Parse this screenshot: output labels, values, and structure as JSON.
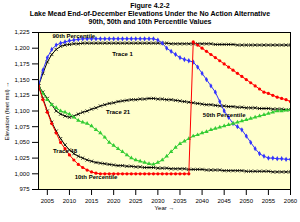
{
  "chart_data": {
    "type": "line",
    "title": "Figure 4.2-2",
    "subtitle": [
      "Lake Mead End-of-December Elevations Under the No Action Alternative",
      "90th, 50th and 10th Percentile Values"
    ],
    "x_label": "Year",
    "y_label": "Elevation (feet msl)",
    "x": [
      2003,
      2004,
      2005,
      2006,
      2007,
      2008,
      2009,
      2010,
      2011,
      2012,
      2013,
      2014,
      2015,
      2016,
      2017,
      2018,
      2019,
      2020,
      2021,
      2022,
      2023,
      2024,
      2025,
      2026,
      2027,
      2028,
      2029,
      2030,
      2031,
      2032,
      2033,
      2034,
      2035,
      2036,
      2037,
      2038,
      2039,
      2040,
      2041,
      2042,
      2043,
      2044,
      2045,
      2046,
      2047,
      2048,
      2049,
      2050,
      2051,
      2052,
      2053,
      2054,
      2055,
      2056,
      2057,
      2058,
      2059,
      2060
    ],
    "xlim": [
      2003,
      2060
    ],
    "xticks": [
      2005,
      2010,
      2015,
      2020,
      2025,
      2030,
      2035,
      2040,
      2045,
      2050,
      2055,
      2060
    ],
    "ylim": [
      975,
      1225
    ],
    "yticks": [
      {
        "value": 975,
        "label": "975"
      },
      {
        "value": 1000,
        "label": "1,000"
      },
      {
        "value": 1025,
        "label": "1,025"
      },
      {
        "value": 1050,
        "label": "1,050"
      },
      {
        "value": 1075,
        "label": "1,075"
      },
      {
        "value": 1100,
        "label": "1,100"
      },
      {
        "value": 1125,
        "label": "1,125"
      },
      {
        "value": 1150,
        "label": "1,150"
      },
      {
        "value": 1175,
        "label": "1,175"
      },
      {
        "value": 1200,
        "label": "1,200"
      },
      {
        "value": 1225,
        "label": "1,225"
      }
    ],
    "grid": false,
    "series": [
      {
        "name": "90th Percentile",
        "color": "#000000",
        "marker": "times",
        "line_style": "solid",
        "values": [
          1140,
          1160,
          1178,
          1190,
          1198,
          1203,
          1205,
          1206,
          1207,
          1207,
          1208,
          1208,
          1208,
          1208,
          1208,
          1208,
          1208,
          1208,
          1208,
          1208,
          1208,
          1208,
          1208,
          1208,
          1208,
          1208,
          1208,
          1208,
          1208,
          1208,
          1207,
          1207,
          1207,
          1207,
          1207,
          1207,
          1207,
          1207,
          1207,
          1207,
          1206,
          1206,
          1206,
          1206,
          1206,
          1205,
          1205,
          1205,
          1205,
          1205,
          1205,
          1205,
          1205,
          1205,
          1205,
          1205,
          1205,
          1205
        ]
      },
      {
        "name": "50th Percentile",
        "color": "#000000",
        "marker": "times",
        "line_style": "solid",
        "values": [
          1140,
          1130,
          1120,
          1110,
          1100,
          1095,
          1092,
          1090,
          1092,
          1095,
          1098,
          1100,
          1103,
          1105,
          1108,
          1110,
          1112,
          1113,
          1115,
          1116,
          1117,
          1118,
          1118,
          1119,
          1119,
          1120,
          1120,
          1119,
          1119,
          1118,
          1118,
          1117,
          1116,
          1115,
          1114,
          1113,
          1112,
          1111,
          1110,
          1110,
          1109,
          1108,
          1108,
          1107,
          1107,
          1106,
          1106,
          1105,
          1105,
          1105,
          1104,
          1104,
          1104,
          1103,
          1103,
          1103,
          1102,
          1102
        ]
      },
      {
        "name": "10th Percentile",
        "color": "#000000",
        "marker": "times",
        "line_style": "solid",
        "values": [
          1140,
          1120,
          1100,
          1082,
          1068,
          1056,
          1046,
          1038,
          1032,
          1028,
          1025,
          1022,
          1020,
          1018,
          1017,
          1016,
          1015,
          1014,
          1013,
          1013,
          1012,
          1012,
          1011,
          1011,
          1010,
          1010,
          1010,
          1009,
          1009,
          1009,
          1008,
          1008,
          1008,
          1008,
          1007,
          1007,
          1007,
          1007,
          1006,
          1006,
          1006,
          1006,
          1005,
          1005,
          1005,
          1005,
          1005,
          1004,
          1004,
          1004,
          1004,
          1004,
          1004,
          1003,
          1003,
          1003,
          1003,
          1003
        ]
      },
      {
        "name": "Trace 1",
        "color": "#3333ff",
        "marker": "diamond",
        "line_style": "solid",
        "values": [
          1140,
          1165,
          1185,
          1198,
          1205,
          1208,
          1210,
          1212,
          1213,
          1214,
          1215,
          1215,
          1215,
          1215,
          1215,
          1215,
          1215,
          1215,
          1215,
          1215,
          1215,
          1215,
          1215,
          1215,
          1215,
          1215,
          1215,
          1213,
          1208,
          1200,
          1195,
          1190,
          1185,
          1182,
          1180,
          1178,
          1170,
          1160,
          1150,
          1140,
          1130,
          1115,
          1100,
          1090,
          1080,
          1075,
          1070,
          1060,
          1050,
          1040,
          1032,
          1028,
          1025,
          1025,
          1024,
          1024,
          1023,
          1023
        ]
      },
      {
        "name": "Trace 21",
        "color": "#33cc33",
        "marker": "triangle",
        "line_style": "solid",
        "values": [
          1140,
          1128,
          1118,
          1110,
          1105,
          1100,
          1098,
          1095,
          1090,
          1085,
          1082,
          1080,
          1076,
          1070,
          1065,
          1058,
          1050,
          1045,
          1040,
          1035,
          1030,
          1025,
          1022,
          1020,
          1018,
          1016,
          1015,
          1018,
          1022,
          1028,
          1035,
          1042,
          1048,
          1052,
          1056,
          1060,
          1062,
          1065,
          1067,
          1070,
          1072,
          1074,
          1076,
          1078,
          1080,
          1082,
          1084,
          1086,
          1088,
          1090,
          1092,
          1094,
          1096,
          1098,
          1100,
          1100,
          1101,
          1102
        ]
      },
      {
        "name": "Trace 48",
        "color": "#ff0000",
        "marker": "circle",
        "line_style": "solid",
        "values": [
          1140,
          1118,
          1098,
          1080,
          1065,
          1050,
          1040,
          1030,
          1022,
          1015,
          1010,
          1006,
          1003,
          1001,
          1000,
          1000,
          1000,
          1000,
          1000,
          1000,
          1000,
          1000,
          1000,
          1000,
          1000,
          1000,
          1000,
          1000,
          1000,
          1000,
          1000,
          1000,
          1000,
          1000,
          1000,
          1210,
          1205,
          1200,
          1195,
          1190,
          1185,
          1180,
          1175,
          1170,
          1165,
          1160,
          1155,
          1150,
          1145,
          1140,
          1135,
          1130,
          1128,
          1125,
          1122,
          1120,
          1118,
          1115
        ]
      }
    ],
    "annotations": [
      {
        "text": "90th Percentile",
        "x": 2011,
        "y": 1219
      },
      {
        "text": "Trace 1",
        "x": 2022,
        "y": 1190
      },
      {
        "text": "Trace 21",
        "x": 2021,
        "y": 1098
      },
      {
        "text": "50th Percentile",
        "x": 2045,
        "y": 1093
      },
      {
        "text": "Trace 48",
        "x": 2009,
        "y": 1036
      },
      {
        "text": "10th Percentile",
        "x": 2016,
        "y": 994
      }
    ]
  }
}
